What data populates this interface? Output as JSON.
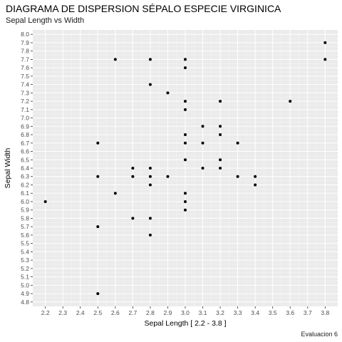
{
  "title": "DIAGRAMA DE DISPERSION SÉPALO ESPECIE VIRGINICA",
  "subtitle": "Sepal Length vs Width",
  "caption": "Evaluacion 6",
  "chart_data": {
    "type": "scatter",
    "xlabel": "Sepal Length [ 2.2 - 3.8 ]",
    "ylabel": "Sepal Width",
    "xlim": [
      2.2,
      3.8
    ],
    "ylim": [
      4.8,
      8.0
    ],
    "x_ticks": [
      "2.2",
      "2.3",
      "2.4",
      "2.5",
      "2.6",
      "2.7",
      "2.8",
      "2.9",
      "3.0",
      "3.1",
      "3.2",
      "3.3",
      "3.4",
      "3.5",
      "3.6",
      "3.7",
      "3.8"
    ],
    "y_ticks": [
      "4.8",
      "4.9",
      "5.0",
      "5.1",
      "5.2",
      "5.3",
      "5.4",
      "5.5",
      "5.6",
      "5.7",
      "5.8",
      "5.9",
      "6.0",
      "6.1",
      "6.2",
      "6.3",
      "6.4",
      "6.5",
      "6.6",
      "6.7",
      "6.8",
      "6.9",
      "7.0",
      "7.1",
      "7.2",
      "7.3",
      "7.4",
      "7.5",
      "7.6",
      "7.7",
      "7.8",
      "7.9",
      "8.0"
    ],
    "grid": true,
    "colors": {
      "panel": "#ebebeb",
      "grid_major": "#ffffff",
      "grid_minor": "#f5f5f5",
      "point": "#000000",
      "tick_text": "#4d4d4d"
    },
    "points": [
      [
        3.8,
        7.9
      ],
      [
        2.6,
        7.7
      ],
      [
        2.8,
        7.7
      ],
      [
        3.0,
        7.7
      ],
      [
        3.8,
        7.7
      ],
      [
        3.0,
        7.6
      ],
      [
        2.8,
        7.4
      ],
      [
        2.9,
        7.3
      ],
      [
        3.0,
        7.2
      ],
      [
        3.2,
        7.2
      ],
      [
        3.6,
        7.2
      ],
      [
        3.0,
        7.1
      ],
      [
        3.1,
        6.9
      ],
      [
        3.2,
        6.9
      ],
      [
        3.0,
        6.8
      ],
      [
        3.2,
        6.8
      ],
      [
        2.5,
        6.7
      ],
      [
        3.0,
        6.7
      ],
      [
        3.1,
        6.7
      ],
      [
        3.3,
        6.7
      ],
      [
        3.0,
        6.5
      ],
      [
        3.2,
        6.5
      ],
      [
        2.7,
        6.4
      ],
      [
        2.8,
        6.4
      ],
      [
        3.1,
        6.4
      ],
      [
        3.2,
        6.4
      ],
      [
        2.5,
        6.3
      ],
      [
        2.7,
        6.3
      ],
      [
        2.8,
        6.3
      ],
      [
        2.9,
        6.3
      ],
      [
        3.3,
        6.3
      ],
      [
        3.4,
        6.3
      ],
      [
        2.8,
        6.2
      ],
      [
        3.4,
        6.2
      ],
      [
        2.6,
        6.1
      ],
      [
        3.0,
        6.1
      ],
      [
        2.2,
        6.0
      ],
      [
        3.0,
        6.0
      ],
      [
        3.0,
        5.9
      ],
      [
        2.7,
        5.8
      ],
      [
        2.8,
        5.8
      ],
      [
        2.5,
        5.7
      ],
      [
        2.8,
        5.6
      ],
      [
        2.5,
        4.9
      ]
    ]
  }
}
